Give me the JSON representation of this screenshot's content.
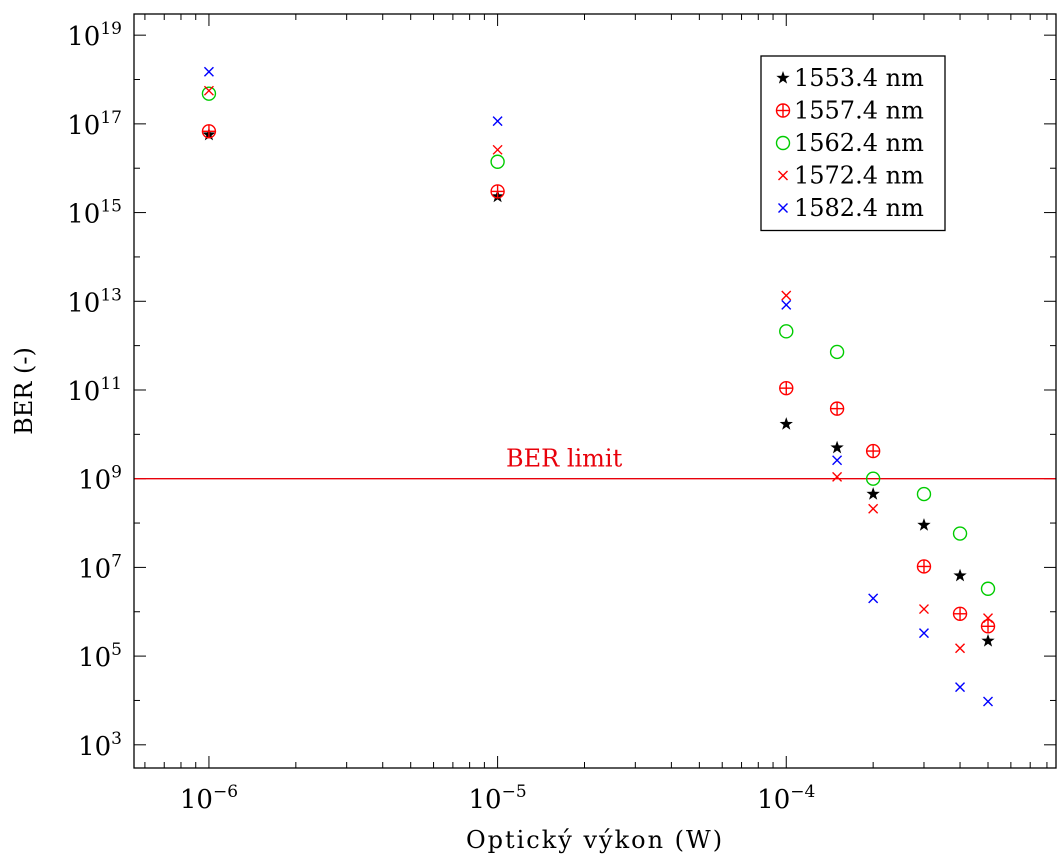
{
  "chart_data": {
    "type": "scatter",
    "title": "",
    "xlabel": "Optický výkon (W)",
    "ylabel": "BER (-)",
    "xscale": "log",
    "yscale": "log",
    "xlim": [
      5.5e-07,
      0.00086
    ],
    "ylim": [
      300,
      3e+19
    ],
    "xticks": [
      {
        "value": 1e-06,
        "base": "10",
        "exp": "−6"
      },
      {
        "value": 1e-05,
        "base": "10",
        "exp": "−5"
      },
      {
        "value": 0.0001,
        "base": "10",
        "exp": "−4"
      }
    ],
    "yticks": [
      {
        "value": 1000.0,
        "base": "10",
        "exp": "3"
      },
      {
        "value": 100000.0,
        "base": "10",
        "exp": "5"
      },
      {
        "value": 10000000.0,
        "base": "10",
        "exp": "7"
      },
      {
        "value": 1000000000.0,
        "base": "10",
        "exp": "9"
      },
      {
        "value": 100000000000.0,
        "base": "10",
        "exp": "11"
      },
      {
        "value": 10000000000000.0,
        "base": "10",
        "exp": "13"
      },
      {
        "value": 1000000000000000.0,
        "base": "10",
        "exp": "15"
      },
      {
        "value": 1e+17,
        "base": "10",
        "exp": "17"
      },
      {
        "value": 1e+19,
        "base": "10",
        "exp": "19"
      }
    ],
    "grid": false,
    "legend_position": "top-right",
    "series": [
      {
        "name": "1553.4 nm",
        "color": "#000000",
        "marker": "star",
        "points": [
          [
            1e-06,
            5.7e+16
          ],
          [
            1e-05,
            2300000000000000.0
          ],
          [
            0.0001,
            17000000000.0
          ],
          [
            0.00015,
            5000000000.0
          ],
          [
            0.0002,
            450000000.0
          ],
          [
            0.0003,
            90000000.0
          ],
          [
            0.0004,
            6500000.0
          ],
          [
            0.0005,
            220000.0
          ]
        ]
      },
      {
        "name": "1557.4 nm",
        "color": "#ff0000",
        "marker": "oplus",
        "points": [
          [
            1e-06,
            6.8e+16
          ],
          [
            1e-05,
            3000000000000000.0
          ],
          [
            0.0001,
            110000000000.0
          ],
          [
            0.00015,
            38000000000.0
          ],
          [
            0.0002,
            4200000000.0
          ],
          [
            0.0003,
            10500000.0
          ],
          [
            0.0004,
            900000.0
          ],
          [
            0.0005,
            470000.0
          ]
        ]
      },
      {
        "name": "1562.4 nm",
        "color": "#00cc00",
        "marker": "circle",
        "points": [
          [
            1e-06,
            4.8e+17
          ],
          [
            1e-05,
            1.4e+16
          ],
          [
            0.0001,
            2100000000000.0
          ],
          [
            0.00015,
            720000000000.0
          ],
          [
            0.0002,
            1000000000.0
          ],
          [
            0.0003,
            450000000.0
          ],
          [
            0.0004,
            58000000.0
          ],
          [
            0.0005,
            3300000.0
          ]
        ]
      },
      {
        "name": "1572.4 nm",
        "color": "#ff0000",
        "marker": "x",
        "points": [
          [
            1e-06,
            5.6e+17
          ],
          [
            1e-05,
            2.6e+16
          ],
          [
            0.0001,
            13500000000000.0
          ],
          [
            0.00015,
            1100000000.0
          ],
          [
            0.0002,
            210000000.0
          ],
          [
            0.0003,
            1150000.0
          ],
          [
            0.0004,
            150000.0
          ],
          [
            0.0005,
            720000.0
          ]
        ]
      },
      {
        "name": "1582.4 nm",
        "color": "#0000ff",
        "marker": "x",
        "points": [
          [
            1e-06,
            1.5e+18
          ],
          [
            1e-05,
            1.15e+17
          ],
          [
            0.0001,
            8300000000000.0
          ],
          [
            0.00015,
            2600000000.0
          ],
          [
            0.0002,
            2000000.0
          ],
          [
            0.0003,
            330000.0
          ],
          [
            0.0004,
            20000.0
          ],
          [
            0.0005,
            9500.0
          ]
        ]
      }
    ],
    "annotations": [
      {
        "text": "BER limit",
        "type": "hline",
        "y": 1000000000.0,
        "color": "#e8000a"
      }
    ]
  }
}
